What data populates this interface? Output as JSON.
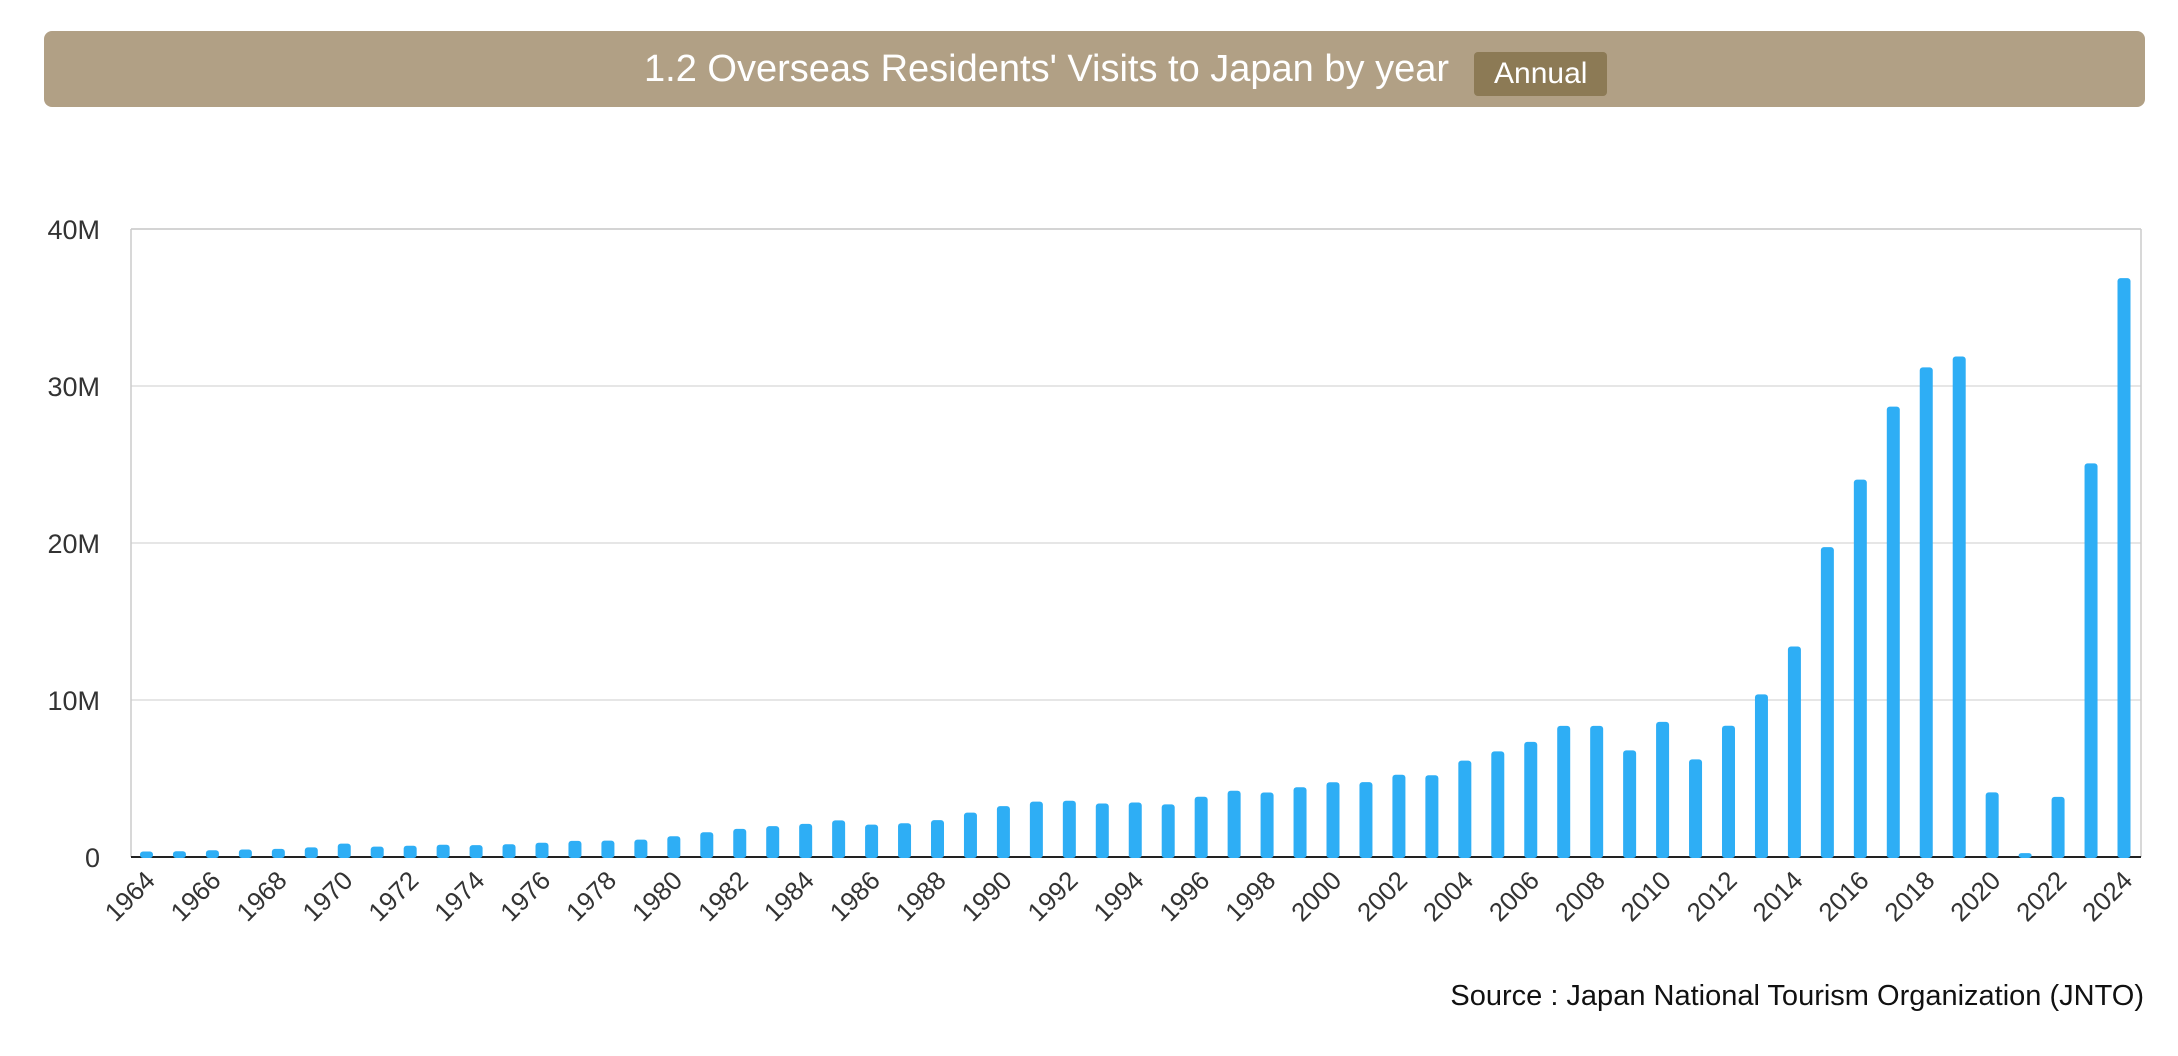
{
  "header": {
    "title": "1.2 Overseas Residents' Visits to Japan by year",
    "badge": "Annual"
  },
  "source": "Source : Japan National Tourism Organization (JNTO)",
  "colors": {
    "header_bg": "#b1a085",
    "badge_bg": "#8c7a55",
    "bar": "#2eaef5",
    "grid": "#dddddd"
  },
  "chart_data": {
    "type": "bar",
    "title": "1.2 Overseas Residents' Visits to Japan by year",
    "xlabel": "",
    "ylabel": "",
    "ylim": [
      0,
      40000000
    ],
    "y_ticks": [
      {
        "value": 0,
        "label": "0"
      },
      {
        "value": 10000000,
        "label": "10M"
      },
      {
        "value": 20000000,
        "label": "20M"
      },
      {
        "value": 30000000,
        "label": "30M"
      },
      {
        "value": 40000000,
        "label": "40M"
      }
    ],
    "categories": [
      "1964",
      "1965",
      "1966",
      "1967",
      "1968",
      "1969",
      "1970",
      "1971",
      "1972",
      "1973",
      "1974",
      "1975",
      "1976",
      "1977",
      "1978",
      "1979",
      "1980",
      "1981",
      "1982",
      "1983",
      "1984",
      "1985",
      "1986",
      "1987",
      "1988",
      "1989",
      "1990",
      "1991",
      "1992",
      "1993",
      "1994",
      "1995",
      "1996",
      "1997",
      "1998",
      "1999",
      "2000",
      "2001",
      "2002",
      "2003",
      "2004",
      "2005",
      "2006",
      "2007",
      "2008",
      "2009",
      "2010",
      "2011",
      "2012",
      "2013",
      "2014",
      "2015",
      "2016",
      "2017",
      "2018",
      "2019",
      "2020",
      "2021",
      "2022",
      "2023",
      "2024"
    ],
    "x_tick_labels": [
      "1964",
      "1966",
      "1968",
      "1970",
      "1972",
      "1974",
      "1976",
      "1978",
      "1980",
      "1982",
      "1984",
      "1986",
      "1988",
      "1990",
      "1992",
      "1994",
      "1996",
      "1998",
      "2000",
      "2002",
      "2004",
      "2006",
      "2008",
      "2010",
      "2012",
      "2014",
      "2016",
      "2018",
      "2020",
      "2022",
      "2024"
    ],
    "values": [
      350000,
      370000,
      430000,
      480000,
      520000,
      610000,
      850000,
      660000,
      720000,
      780000,
      760000,
      810000,
      910000,
      1030000,
      1040000,
      1110000,
      1320000,
      1580000,
      1790000,
      1970000,
      2110000,
      2330000,
      2060000,
      2150000,
      2350000,
      2830000,
      3240000,
      3530000,
      3580000,
      3410000,
      3470000,
      3350000,
      3840000,
      4220000,
      4110000,
      4440000,
      4760000,
      4770000,
      5240000,
      5210000,
      6140000,
      6730000,
      7330000,
      8350000,
      8350000,
      6790000,
      8610000,
      6220000,
      8360000,
      10360000,
      13410000,
      19740000,
      24040000,
      28690000,
      31190000,
      31880000,
      4120000,
      250000,
      3830000,
      25070000,
      36870000
    ],
    "grid": true,
    "legend": "none"
  }
}
